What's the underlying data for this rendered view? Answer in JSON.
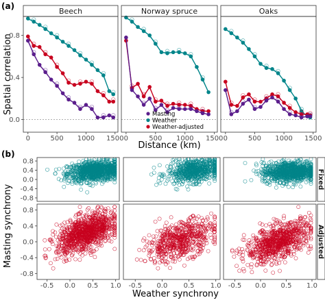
{
  "panel_labels": {
    "a": "(a)",
    "b": "(b)"
  },
  "colors": {
    "masting": "#5b1e8c",
    "weather": "#00858a",
    "adjusted": "#c8001e",
    "strip_bg": "#d9d9d9",
    "frame": "#333333"
  },
  "chart_data": [
    {
      "type": "line",
      "panel": "(a)",
      "facets": [
        "Beech",
        "Norway spruce",
        "Oaks"
      ],
      "xlabel": "Distance (km)",
      "ylabel": "Spatial correlation",
      "xlim": [
        -80,
        1550
      ],
      "ylim": [
        -0.12,
        0.98
      ],
      "x_ticks": [
        0,
        500,
        1000,
        1500
      ],
      "y_ticks": [
        0.0,
        0.4,
        0.8
      ],
      "reference_line_y": 0,
      "legend": {
        "position": "bottom-left of Norway spruce facet",
        "entries": [
          "Masting",
          "Weather",
          "Weather-adjusted"
        ]
      },
      "series_by_facet": {
        "Beech": {
          "Weather": {
            "x": [
              0,
              100,
              200,
              300,
              400,
              500,
              600,
              700,
              800,
              900,
              1000,
              1100,
              1200,
              1300,
              1400,
              1470
            ],
            "y": [
              0.96,
              0.93,
              0.9,
              0.86,
              0.82,
              0.78,
              0.74,
              0.7,
              0.66,
              0.61,
              0.57,
              0.52,
              0.47,
              0.42,
              0.27,
              0.24
            ]
          },
          "Weather-adjusted": {
            "x": [
              0,
              100,
              200,
              300,
              400,
              500,
              600,
              700,
              800,
              900,
              1000,
              1100,
              1200,
              1300,
              1400,
              1470
            ],
            "y": [
              0.79,
              0.7,
              0.69,
              0.62,
              0.59,
              0.5,
              0.44,
              0.35,
              0.33,
              0.34,
              0.36,
              0.34,
              0.27,
              0.23,
              0.17,
              0.17
            ]
          },
          "Masting": {
            "x": [
              0,
              100,
              200,
              300,
              400,
              500,
              600,
              700,
              800,
              900,
              1000,
              1100,
              1200,
              1300,
              1400,
              1470
            ],
            "y": [
              0.75,
              0.62,
              0.52,
              0.45,
              0.38,
              0.32,
              0.25,
              0.19,
              0.16,
              0.1,
              0.14,
              0.1,
              0.02,
              0.02,
              0.04,
              0.02
            ]
          }
        },
        "Norway spruce": {
          "Weather": {
            "x": [
              0,
              100,
              200,
              300,
              400,
              500,
              600,
              700,
              800,
              900,
              1000,
              1100,
              1200,
              1300,
              1400
            ],
            "y": [
              0.97,
              0.93,
              0.88,
              0.84,
              0.8,
              0.72,
              0.64,
              0.63,
              0.64,
              0.64,
              0.63,
              0.6,
              0.5,
              0.38,
              0.26
            ]
          },
          "Weather-adjusted": {
            "x": [
              0,
              100,
              200,
              300,
              400,
              500,
              600,
              700,
              800,
              900,
              1000,
              1100,
              1200,
              1300,
              1400
            ],
            "y": [
              0.75,
              0.3,
              0.34,
              0.22,
              0.31,
              0.17,
              0.18,
              0.13,
              0.15,
              0.14,
              0.14,
              0.13,
              0.1,
              0.08,
              0.08
            ]
          },
          "Masting": {
            "x": [
              0,
              100,
              200,
              300,
              400,
              500,
              600,
              700,
              800,
              900,
              1000,
              1100,
              1200,
              1300,
              1400
            ],
            "y": [
              0.78,
              0.28,
              0.22,
              0.14,
              0.2,
              0.09,
              0.14,
              0.07,
              0.11,
              0.1,
              0.1,
              0.1,
              0.08,
              0.06,
              0.05
            ]
          }
        },
        "Oaks": {
          "Weather": {
            "x": [
              0,
              100,
              200,
              300,
              400,
              500,
              600,
              700,
              800,
              900,
              1000,
              1100,
              1200,
              1300,
              1400,
              1450
            ],
            "y": [
              0.86,
              0.82,
              0.78,
              0.73,
              0.67,
              0.6,
              0.53,
              0.49,
              0.48,
              0.44,
              0.37,
              0.28,
              0.2,
              0.08,
              0.03,
              0.02
            ]
          },
          "Weather-adjusted": {
            "x": [
              0,
              100,
              200,
              300,
              400,
              500,
              600,
              700,
              800,
              900,
              1000,
              1100,
              1200,
              1300,
              1400,
              1450
            ],
            "y": [
              0.36,
              0.14,
              0.13,
              0.21,
              0.24,
              0.17,
              0.17,
              0.2,
              0.24,
              0.22,
              0.16,
              0.11,
              0.07,
              0.05,
              0.05,
              0.04
            ]
          },
          "Masting": {
            "x": [
              0,
              100,
              200,
              300,
              400,
              500,
              600,
              700,
              800,
              900,
              1000,
              1100,
              1200,
              1300,
              1400,
              1450
            ],
            "y": [
              0.28,
              0.05,
              0.08,
              0.15,
              0.19,
              0.1,
              0.12,
              0.18,
              0.21,
              0.17,
              0.1,
              0.05,
              0.04,
              0.02,
              0.03,
              0.03
            ]
          }
        }
      }
    },
    {
      "type": "scatter",
      "panel": "(b)",
      "facets_columns": [
        "Beech",
        "Norway spruce",
        "Oaks"
      ],
      "facets_rows": [
        "Fixed",
        "Adjusted"
      ],
      "xlabel": "Weather synchrony",
      "ylabel": "Masting synchrony",
      "xlim": [
        -0.72,
        1.08
      ],
      "ylim": [
        -0.95,
        0.95
      ],
      "x_ticks": [
        -0.5,
        0.0,
        0.5,
        1.0
      ],
      "y_ticks": [
        -0.8,
        -0.4,
        0.0,
        0.4,
        0.8
      ],
      "point_clouds": {
        "Fixed": {
          "Beech": {
            "n": 950,
            "x_min": -0.5,
            "x_max": 0.98,
            "x_center": 0.55,
            "x_sd": 0.3,
            "y_center": 0.36,
            "y_sd": 0.22,
            "slope": 0.18
          },
          "Norway spruce": {
            "n": 650,
            "x_min": -0.2,
            "x_max": 0.98,
            "x_center": 0.6,
            "x_sd": 0.25,
            "y_center": 0.38,
            "y_sd": 0.25,
            "slope": 0.25
          },
          "Oaks": {
            "n": 950,
            "x_min": -0.3,
            "x_max": 0.98,
            "x_center": 0.6,
            "x_sd": 0.28,
            "y_center": 0.34,
            "y_sd": 0.22,
            "slope": 0.1
          }
        },
        "Adjusted": {
          "Beech": {
            "n": 1000,
            "x_min": -0.55,
            "x_max": 0.98,
            "x_center": 0.35,
            "x_sd": 0.32,
            "y_center": 0.22,
            "y_sd": 0.22,
            "slope": 0.42
          },
          "Norway spruce": {
            "n": 600,
            "x_min": -0.55,
            "x_max": 0.98,
            "x_center": 0.35,
            "x_sd": 0.32,
            "y_center": 0.05,
            "y_sd": 0.23,
            "slope": 0.42
          },
          "Oaks": {
            "n": 800,
            "x_min": -0.55,
            "x_max": 0.98,
            "x_center": 0.35,
            "x_sd": 0.32,
            "y_center": 0.0,
            "y_sd": 0.22,
            "slope": 0.45
          }
        }
      }
    }
  ]
}
